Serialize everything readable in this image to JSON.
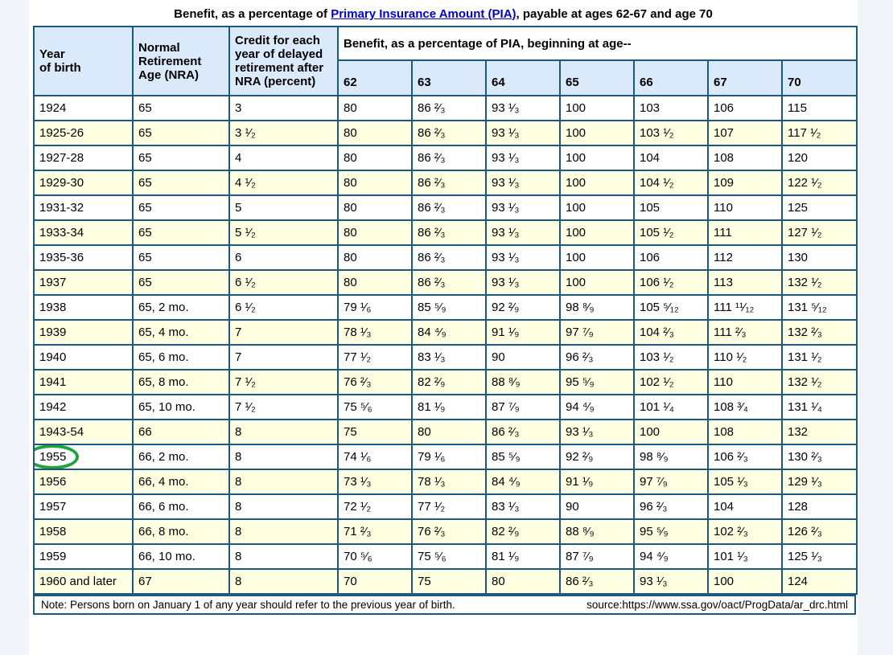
{
  "title": {
    "prefix": "Benefit, as a percentage of ",
    "link_text": "Primary Insurance Amount (PIA)",
    "suffix": ", payable at ages 62-67 and age 70"
  },
  "table": {
    "row_headers": {
      "year": "Year\nof birth",
      "nra": "Normal\nRetirement\nAge (NRA)",
      "credit": "Credit for each\nyear of delayed\nretirement after\nNRA (percent)"
    },
    "group_header": "Benefit, as a percentage of PIA, beginning at age--",
    "age_columns": [
      "62",
      "63",
      "64",
      "65",
      "66",
      "67",
      "70"
    ],
    "rows": [
      {
        "cells": [
          "1924",
          "65",
          "3",
          "80",
          "86 ²⁄₃",
          "93 ¹⁄₃",
          "100",
          "103",
          "106",
          "115"
        ]
      },
      {
        "cells": [
          "1925-26",
          "65",
          "3 ¹⁄₂",
          "80",
          "86 ²⁄₃",
          "93 ¹⁄₃",
          "100",
          "103 ¹⁄₂",
          "107",
          "117 ¹⁄₂"
        ]
      },
      {
        "cells": [
          "1927-28",
          "65",
          "4",
          "80",
          "86 ²⁄₃",
          "93 ¹⁄₃",
          "100",
          "104",
          "108",
          "120"
        ]
      },
      {
        "cells": [
          "1929-30",
          "65",
          "4 ¹⁄₂",
          "80",
          "86 ²⁄₃",
          "93 ¹⁄₃",
          "100",
          "104 ¹⁄₂",
          "109",
          "122 ¹⁄₂"
        ]
      },
      {
        "cells": [
          "1931-32",
          "65",
          "5",
          "80",
          "86 ²⁄₃",
          "93 ¹⁄₃",
          "100",
          "105",
          "110",
          "125"
        ]
      },
      {
        "cells": [
          "1933-34",
          "65",
          "5 ¹⁄₂",
          "80",
          "86 ²⁄₃",
          "93 ¹⁄₃",
          "100",
          "105 ¹⁄₂",
          "111",
          "127 ¹⁄₂"
        ]
      },
      {
        "cells": [
          "1935-36",
          "65",
          "6",
          "80",
          "86 ²⁄₃",
          "93 ¹⁄₃",
          "100",
          "106",
          "112",
          "130"
        ]
      },
      {
        "cells": [
          "1937",
          "65",
          "6 ¹⁄₂",
          "80",
          "86 ²⁄₃",
          "93 ¹⁄₃",
          "100",
          "106 ¹⁄₂",
          "113",
          "132 ¹⁄₂"
        ]
      },
      {
        "cells": [
          "1938",
          "65, 2 mo.",
          "6 ¹⁄₂",
          "79 ¹⁄₆",
          "85 ⁵⁄₉",
          "92 ²⁄₉",
          "98 ⁸⁄₉",
          "105 ⁵⁄₁₂",
          "111 ¹¹⁄₁₂",
          "131 ⁵⁄₁₂"
        ]
      },
      {
        "cells": [
          "1939",
          "65, 4 mo.",
          "7",
          "78 ¹⁄₃",
          "84 ⁴⁄₉",
          "91 ¹⁄₉",
          "97 ⁷⁄₉",
          "104 ²⁄₃",
          "111 ²⁄₃",
          "132 ²⁄₃"
        ]
      },
      {
        "cells": [
          "1940",
          "65, 6 mo.",
          "7",
          "77 ¹⁄₂",
          "83 ¹⁄₃",
          "90",
          "96 ²⁄₃",
          "103 ¹⁄₂",
          "110 ¹⁄₂",
          "131 ¹⁄₂"
        ]
      },
      {
        "cells": [
          "1941",
          "65, 8 mo.",
          "7 ¹⁄₂",
          "76 ²⁄₃",
          "82 ²⁄₉",
          "88 ⁸⁄₉",
          "95 ⁵⁄₉",
          "102 ¹⁄₂",
          "110",
          "132 ¹⁄₂"
        ]
      },
      {
        "cells": [
          "1942",
          "65, 10 mo.",
          "7 ¹⁄₂",
          "75 ⁵⁄₆",
          "81 ¹⁄₉",
          "87 ⁷⁄₉",
          "94 ⁴⁄₉",
          "101 ¹⁄₄",
          "108 ³⁄₄",
          "131 ¹⁄₄"
        ]
      },
      {
        "cells": [
          "1943-54",
          "66",
          "8",
          "75",
          "80",
          "86 ²⁄₃",
          "93 ¹⁄₃",
          "100",
          "108",
          "132"
        ]
      },
      {
        "cells": [
          "1955",
          "66, 2 mo.",
          "8",
          "74 ¹⁄₆",
          "79 ¹⁄₆",
          "85 ⁵⁄₉",
          "92 ²⁄₉",
          "98 ⁸⁄₉",
          "106 ²⁄₃",
          "130 ²⁄₃"
        ]
      },
      {
        "cells": [
          "1956",
          "66, 4 mo.",
          "8",
          "73 ¹⁄₃",
          "78 ¹⁄₃",
          "84 ⁴⁄₉",
          "91 ¹⁄₉",
          "97 ⁷⁄₉",
          "105 ¹⁄₃",
          "129 ¹⁄₃"
        ]
      },
      {
        "cells": [
          "1957",
          "66, 6 mo.",
          "8",
          "72 ¹⁄₂",
          "77 ¹⁄₂",
          "83 ¹⁄₃",
          "90",
          "96 ²⁄₃",
          "104",
          "128"
        ]
      },
      {
        "cells": [
          "1958",
          "66, 8 mo.",
          "8",
          "71 ²⁄₃",
          "76 ²⁄₃",
          "82 ²⁄₉",
          "88 ⁸⁄₉",
          "95 ⁵⁄₉",
          "102 ²⁄₃",
          "126 ²⁄₃"
        ]
      },
      {
        "cells": [
          "1959",
          "66, 10 mo.",
          "8",
          "70 ⁵⁄₆",
          "75 ⁵⁄₆",
          "81 ¹⁄₉",
          "87 ⁷⁄₉",
          "94 ⁴⁄₉",
          "101 ¹⁄₃",
          "125 ¹⁄₃"
        ]
      },
      {
        "cells": [
          "1960 and later",
          "67",
          "8",
          "70",
          "75",
          "80",
          "86 ²⁄₃",
          "93 ¹⁄₃",
          "100",
          "124"
        ]
      }
    ]
  },
  "annotation": {
    "shape": "ellipse",
    "circled_value": "1955",
    "color": "#1fa33c"
  },
  "footer": {
    "note": "Note: Persons born on January 1 of any year should refer to the previous year of birth.",
    "source": "source:https://www.ssa.gov/oact/ProgData/ar_drc.html"
  },
  "colors": {
    "border": "#1b5a7e",
    "header_bg": "#dbeafb",
    "alt_row_bg": "#ffffe1",
    "page_bg": "#f1f4f8",
    "link": "#0000cc"
  }
}
